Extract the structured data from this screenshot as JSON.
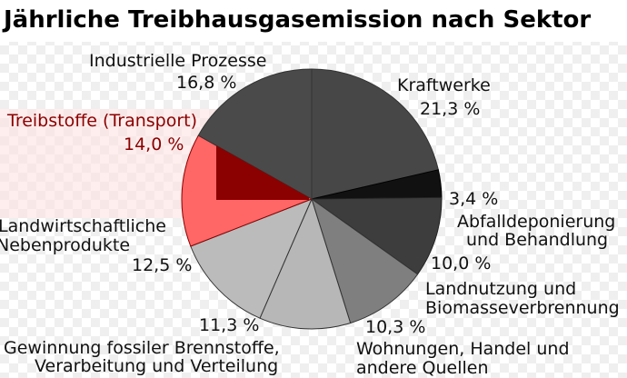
{
  "chart_data": {
    "type": "pie",
    "title": "Jährliche Treibhausgasemission nach Sektor",
    "start_angle_deg": -90,
    "direction": "clockwise",
    "slices": [
      {
        "label_lines": [
          "Kraftwerke"
        ],
        "value": 21.3,
        "value_label": "21,3 %",
        "color": "#474747",
        "stroke": "#333333"
      },
      {
        "label_lines": [
          "Abfalldeponierung",
          "und Behandlung"
        ],
        "value": 3.4,
        "value_label": "3,4 %",
        "color": "#111111",
        "stroke": "#000000"
      },
      {
        "label_lines": [
          "Landnutzung und",
          "Biomasseverbrennung"
        ],
        "value": 10.0,
        "value_label": "10,0 %",
        "color": "#3d3d3d",
        "stroke": "#222222"
      },
      {
        "label_lines": [
          "Wohnungen, Handel und",
          "andere Quellen"
        ],
        "value": 10.3,
        "value_label": "10,3 %",
        "color": "#7f7f7f",
        "stroke": "#333333"
      },
      {
        "label_lines": [
          "Gewinnung fossiler Brennstoffe,",
          "Verarbeitung und Verteilung"
        ],
        "value": 11.3,
        "value_label": "11,3 %",
        "color": "#b7b7b7",
        "stroke": "#333333"
      },
      {
        "label_lines": [
          "Landwirtschaftliche",
          "Nebenprodukte"
        ],
        "value": 12.5,
        "value_label": "12,5 %",
        "color": "#bbbbbb",
        "stroke": "#333333"
      },
      {
        "label_lines": [
          "Treibstoffe (Transport)"
        ],
        "value": 14.0,
        "value_label": "14,0 %",
        "color": "#ff6666",
        "stroke": "#8b0000",
        "highlight": true
      },
      {
        "label_lines": [
          "Industrielle Prozesse"
        ],
        "value": 16.8,
        "value_label": "16,8 %",
        "color": "#4a4a4a",
        "stroke": "#333333"
      }
    ],
    "highlight_colors": {
      "fill_light": "#ff6666",
      "fill_dark": "#8b0000",
      "text": "#8b0000"
    }
  }
}
